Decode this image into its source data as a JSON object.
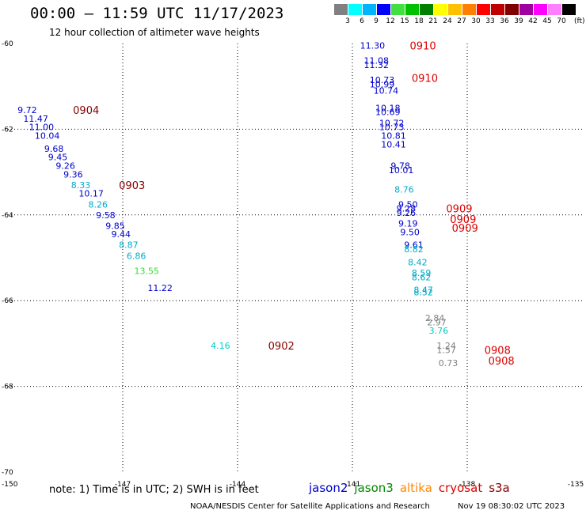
{
  "header": {
    "title": "00:00 – 11:59 UTC 11/17/2023",
    "subtitle": "12 hour collection of altimeter wave heights"
  },
  "scale": {
    "colors": [
      "#808080",
      "#00ffff",
      "#00b4ff",
      "#0000ff",
      "#40e040",
      "#00c000",
      "#008000",
      "#ffff00",
      "#ffc000",
      "#ff8000",
      "#ff0000",
      "#c00000",
      "#800000",
      "#a000a0",
      "#ff00ff",
      "#ff80ff",
      "#000000"
    ],
    "labels": [
      "3",
      "6",
      "9",
      "12",
      "15",
      "18",
      "21",
      "24",
      "27",
      "30",
      "33",
      "36",
      "39",
      "42",
      "45",
      "70"
    ],
    "unit": "(ft)"
  },
  "footer": {
    "note": "note: 1) Time is in UTC; 2) SWH is in feet",
    "credit": "NOAA/NESDIS Center for Satellite Applications and Research",
    "timestamp": "Nov 19 08:30:02 UTC 2023"
  },
  "satellites": [
    {
      "name": "jason2",
      "color": "#0000cc"
    },
    {
      "name": "jason3",
      "color": "#008800"
    },
    {
      "name": "altika",
      "color": "#ff8800"
    },
    {
      "name": "cryosat",
      "color": "#dd0000"
    },
    {
      "name": "s3a",
      "color": "#880000"
    }
  ],
  "chart_data": {
    "type": "scatter",
    "xlim": [
      -150,
      -135
    ],
    "ylim": [
      -70,
      -60
    ],
    "x_ticks": [
      "-150",
      "-147",
      "-144",
      "-141",
      "-138",
      "-135"
    ],
    "y_ticks": [
      "-60",
      "-62",
      "-64",
      "-66",
      "-68",
      "-70"
    ],
    "grid": true,
    "points": [
      {
        "x": -149.75,
        "y": -61.55,
        "label": "9.72",
        "color": "#0000cc"
      },
      {
        "x": -149.6,
        "y": -61.75,
        "label": "11.47",
        "color": "#0000cc"
      },
      {
        "x": -149.45,
        "y": -61.95,
        "label": "11.00",
        "color": "#0000cc"
      },
      {
        "x": -149.3,
        "y": -62.15,
        "label": "10.04",
        "color": "#0000cc"
      },
      {
        "x": -149.05,
        "y": -62.45,
        "label": "9.68",
        "color": "#0000cc"
      },
      {
        "x": -148.95,
        "y": -62.65,
        "label": "9.45",
        "color": "#0000cc"
      },
      {
        "x": -148.75,
        "y": -62.85,
        "label": "9.26",
        "color": "#0000cc"
      },
      {
        "x": -148.55,
        "y": -63.05,
        "label": "9.36",
        "color": "#0000cc"
      },
      {
        "x": -148.35,
        "y": -63.3,
        "label": "8.33",
        "color": "#00aacc"
      },
      {
        "x": -148.15,
        "y": -63.5,
        "label": "10.17",
        "color": "#0000cc"
      },
      {
        "x": -147.9,
        "y": -63.75,
        "label": "8.26",
        "color": "#00aacc"
      },
      {
        "x": -147.7,
        "y": -64.0,
        "label": "9.58",
        "color": "#0000cc"
      },
      {
        "x": -147.45,
        "y": -64.25,
        "label": "9.85",
        "color": "#0000cc"
      },
      {
        "x": -147.3,
        "y": -64.45,
        "label": "9.44",
        "color": "#0000cc"
      },
      {
        "x": -147.1,
        "y": -64.7,
        "label": "8.87",
        "color": "#00aacc"
      },
      {
        "x": -146.9,
        "y": -64.95,
        "label": "6.86",
        "color": "#00aacc"
      },
      {
        "x": -146.7,
        "y": -65.3,
        "label": "13.55",
        "color": "#33dd33"
      },
      {
        "x": -146.35,
        "y": -65.7,
        "label": "11.22",
        "color": "#0000cc"
      },
      {
        "x": -144.7,
        "y": -67.05,
        "label": "4.16",
        "color": "#00cccc"
      },
      {
        "x": -140.8,
        "y": -60.05,
        "label": "11.30",
        "color": "#0000cc"
      },
      {
        "x": -140.7,
        "y": -60.4,
        "label": "11.08",
        "color": "#0000cc"
      },
      {
        "x": -140.7,
        "y": -60.5,
        "label": "11.32",
        "color": "#0000cc"
      },
      {
        "x": -140.55,
        "y": -60.85,
        "label": "10.73",
        "color": "#0000cc"
      },
      {
        "x": -140.55,
        "y": -60.95,
        "label": "10.99",
        "color": "#0000cc"
      },
      {
        "x": -140.45,
        "y": -61.1,
        "label": "10.74",
        "color": "#0000cc"
      },
      {
        "x": -140.4,
        "y": -61.5,
        "label": "10.18",
        "color": "#0000cc"
      },
      {
        "x": -140.4,
        "y": -61.6,
        "label": "10.69",
        "color": "#0000cc"
      },
      {
        "x": -140.3,
        "y": -61.85,
        "label": "10.72",
        "color": "#0000cc"
      },
      {
        "x": -140.3,
        "y": -61.95,
        "label": "10.73",
        "color": "#0000cc"
      },
      {
        "x": -140.25,
        "y": -62.15,
        "label": "10.81",
        "color": "#0000cc"
      },
      {
        "x": -140.25,
        "y": -62.35,
        "label": "10.41",
        "color": "#0000cc"
      },
      {
        "x": -140.0,
        "y": -62.85,
        "label": "9.78",
        "color": "#0000cc"
      },
      {
        "x": -140.05,
        "y": -62.95,
        "label": "10.01",
        "color": "#0000cc"
      },
      {
        "x": -139.9,
        "y": -63.4,
        "label": "8.76",
        "color": "#00aacc"
      },
      {
        "x": -139.8,
        "y": -63.75,
        "label": "9.50",
        "color": "#0000cc"
      },
      {
        "x": -139.85,
        "y": -63.85,
        "label": "9.28",
        "color": "#0000cc"
      },
      {
        "x": -139.85,
        "y": -63.95,
        "label": "9.26",
        "color": "#0000cc"
      },
      {
        "x": -139.8,
        "y": -64.2,
        "label": "9.19",
        "color": "#0000cc"
      },
      {
        "x": -139.75,
        "y": -64.4,
        "label": "9.50",
        "color": "#0000cc"
      },
      {
        "x": -139.65,
        "y": -64.7,
        "label": "9.61",
        "color": "#0000cc"
      },
      {
        "x": -139.65,
        "y": -64.8,
        "label": "8.82",
        "color": "#00aacc"
      },
      {
        "x": -139.55,
        "y": -65.1,
        "label": "8.42",
        "color": "#00aacc"
      },
      {
        "x": -139.45,
        "y": -65.35,
        "label": "8.59",
        "color": "#00aacc"
      },
      {
        "x": -139.45,
        "y": -65.45,
        "label": "8.62",
        "color": "#00aacc"
      },
      {
        "x": -139.4,
        "y": -65.75,
        "label": "8.47",
        "color": "#00aacc"
      },
      {
        "x": -139.4,
        "y": -65.8,
        "label": "8.52",
        "color": "#00aacc"
      },
      {
        "x": -139.1,
        "y": -66.4,
        "label": "2.84",
        "color": "#808080"
      },
      {
        "x": -139.05,
        "y": -66.5,
        "label": "2.97",
        "color": "#808080"
      },
      {
        "x": -139.0,
        "y": -66.7,
        "label": "3.76",
        "color": "#00cccc"
      },
      {
        "x": -138.8,
        "y": -67.05,
        "label": "1.24",
        "color": "#808080"
      },
      {
        "x": -138.8,
        "y": -67.15,
        "label": "1.57",
        "color": "#808080"
      },
      {
        "x": -138.75,
        "y": -67.45,
        "label": "0.73",
        "color": "#808080"
      }
    ],
    "annotations": [
      {
        "x": -148.3,
        "y": -61.55,
        "label": "0904",
        "color": "#880000"
      },
      {
        "x": -147.1,
        "y": -63.3,
        "label": "0903",
        "color": "#880000"
      },
      {
        "x": -143.2,
        "y": -67.05,
        "label": "0902",
        "color": "#880000"
      },
      {
        "x": -139.5,
        "y": -60.05,
        "label": "0910",
        "color": "#dd0000"
      },
      {
        "x": -139.45,
        "y": -60.8,
        "label": "0910",
        "color": "#dd0000"
      },
      {
        "x": -138.55,
        "y": -63.85,
        "label": "0909",
        "color": "#dd0000"
      },
      {
        "x": -138.45,
        "y": -64.1,
        "label": "0909",
        "color": "#dd0000"
      },
      {
        "x": -138.4,
        "y": -64.3,
        "label": "0909",
        "color": "#dd0000"
      },
      {
        "x": -137.55,
        "y": -67.15,
        "label": "0908",
        "color": "#dd0000"
      },
      {
        "x": -137.45,
        "y": -67.4,
        "label": "0908",
        "color": "#dd0000"
      }
    ]
  }
}
